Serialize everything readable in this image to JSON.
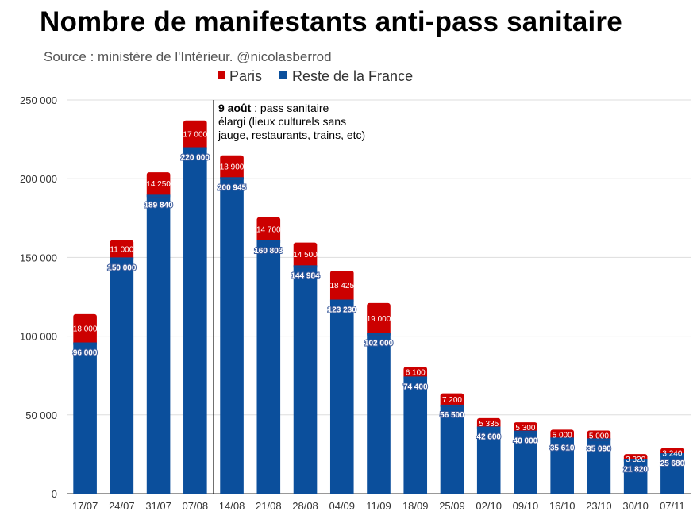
{
  "title": "Nombre de manifestants anti-pass sanitaire",
  "subtitle": "Source : ministère de l'Intérieur. @nicolasberrod",
  "annotation": {
    "bold": "9 août",
    "line1": " : pass sanitaire",
    "line2": "élargi (lieux culturels sans",
    "line3": "jauge, restaurants, trains, etc)"
  },
  "colors": {
    "paris": "#cc0000",
    "reste": "#0b4f9c",
    "grid": "#dddddd"
  },
  "chart_data": {
    "type": "bar",
    "stacked": true,
    "title": "Nombre de manifestants anti-pass sanitaire",
    "categories": [
      "17/07",
      "24/07",
      "31/07",
      "07/08",
      "14/08",
      "21/08",
      "28/08",
      "04/09",
      "11/09",
      "18/09",
      "25/09",
      "02/10",
      "09/10",
      "16/10",
      "23/10",
      "30/10",
      "07/11"
    ],
    "series": [
      {
        "name": "Reste de la France",
        "values": [
          96000,
          150000,
          189840,
          220000,
          200945,
          160803,
          144984,
          123230,
          102000,
          74400,
          56500,
          42600,
          40000,
          35610,
          35090,
          21820,
          25680
        ],
        "labels": [
          "96 000",
          "150 000",
          "189 840",
          "220 000",
          "200 945",
          "160 803",
          "144 984",
          "123 230",
          "102 000",
          "74 400",
          "56 500",
          "42 600",
          "40 000",
          "35 610",
          "35 090",
          "21 820",
          "25 680"
        ]
      },
      {
        "name": "Paris",
        "values": [
          18000,
          11000,
          14250,
          17000,
          13900,
          14700,
          14500,
          18425,
          19000,
          6100,
          7200,
          5335,
          5300,
          5000,
          5000,
          3320,
          3240
        ],
        "labels": [
          "18 000",
          "11 000",
          "14 250",
          "17 000",
          "13 900",
          "14 700",
          "14 500",
          "18 425",
          "19 000",
          "6 100",
          "7 200",
          "5 335",
          "5 300",
          "5 000",
          "5 000",
          "3 320",
          "3 240"
        ]
      }
    ],
    "ylim": [
      0,
      250000
    ],
    "yticks": [
      0,
      50000,
      100000,
      150000,
      200000,
      250000
    ],
    "ytick_labels": [
      "0",
      "50 000",
      "100 000",
      "150 000",
      "200 000",
      "250 000"
    ],
    "legend": {
      "position": "top-center",
      "entries": [
        "Paris",
        "Reste de la France"
      ]
    },
    "marker_after_category": "07/08",
    "grid": true,
    "xlabel": "",
    "ylabel": ""
  }
}
